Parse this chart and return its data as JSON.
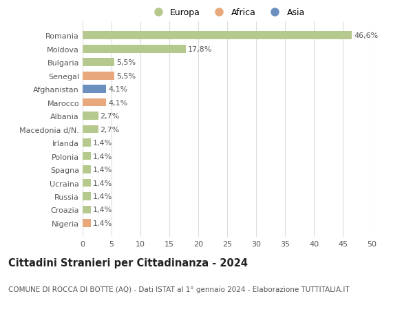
{
  "categories": [
    "Romania",
    "Moldova",
    "Bulgaria",
    "Senegal",
    "Afghanistan",
    "Marocco",
    "Albania",
    "Macedonia d/N.",
    "Irlanda",
    "Polonia",
    "Spagna",
    "Ucraina",
    "Russia",
    "Croazia",
    "Nigeria"
  ],
  "values": [
    46.6,
    17.8,
    5.5,
    5.5,
    4.1,
    4.1,
    2.7,
    2.7,
    1.4,
    1.4,
    1.4,
    1.4,
    1.4,
    1.4,
    1.4
  ],
  "labels": [
    "46,6%",
    "17,8%",
    "5,5%",
    "5,5%",
    "4,1%",
    "4,1%",
    "2,7%",
    "2,7%",
    "1,4%",
    "1,4%",
    "1,4%",
    "1,4%",
    "1,4%",
    "1,4%",
    "1,4%"
  ],
  "continents": [
    "Europa",
    "Europa",
    "Europa",
    "Africa",
    "Asia",
    "Africa",
    "Europa",
    "Europa",
    "Europa",
    "Europa",
    "Europa",
    "Europa",
    "Europa",
    "Europa",
    "Africa"
  ],
  "colors": {
    "Europa": "#b5c98e",
    "Africa": "#e8a87c",
    "Asia": "#6b8fbf"
  },
  "title": "Cittadini Stranieri per Cittadinanza - 2024",
  "subtitle": "COMUNE DI ROCCA DI BOTTE (AQ) - Dati ISTAT al 1° gennaio 2024 - Elaborazione TUTTITALIA.IT",
  "xlim": [
    0,
    50
  ],
  "xticks": [
    0,
    5,
    10,
    15,
    20,
    25,
    30,
    35,
    40,
    45,
    50
  ],
  "background_color": "#ffffff",
  "grid_color": "#dddddd",
  "bar_height": 0.6,
  "label_fontsize": 8.0,
  "title_fontsize": 10.5,
  "subtitle_fontsize": 7.5,
  "ytick_fontsize": 8.0,
  "xtick_fontsize": 8.0,
  "legend_fontsize": 9.0,
  "legend_marker_size": 90
}
